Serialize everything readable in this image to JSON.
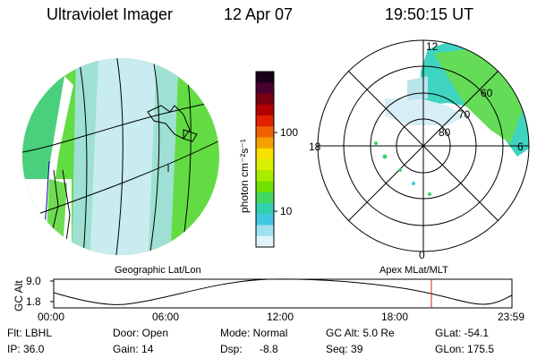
{
  "header": {
    "title": "Ultraviolet Imager",
    "date": "12 Apr 07",
    "time": "19:50:15 UT"
  },
  "colorbar": {
    "unit_label": "photon cm⁻²s⁻¹",
    "ticks": [
      "100",
      "10"
    ],
    "colors": [
      "#1a001a",
      "#4a0030",
      "#7a0010",
      "#b00000",
      "#e02000",
      "#f06000",
      "#f5a000",
      "#f8e000",
      "#d8f000",
      "#a8ec00",
      "#70e000",
      "#40d860",
      "#30d0b0",
      "#40c8e0",
      "#a0e0f0",
      "#e0f4fa"
    ]
  },
  "polar": {
    "mlt_labels": [
      "12",
      "18",
      "6",
      "0"
    ],
    "lat_labels": [
      "60",
      "70",
      "80"
    ]
  },
  "panel_labels": {
    "left": "Geographic Lat/Lon",
    "right": "Apex  MLat/MLT"
  },
  "timeline": {
    "axis_title": "GC Alt",
    "y_ticks": [
      "9.0",
      "1.8"
    ],
    "x_ticks": [
      "00:00",
      "06:00",
      "12:00",
      "18:00",
      "23:59"
    ],
    "marker_color": "#d02020"
  },
  "info": {
    "filter": "Flt: LBHL",
    "ip": "IP: 36.0",
    "door": "Door: Open",
    "gain": "Gain: 14",
    "mode": "Mode: Normal",
    "dsp_label": "Dsp:",
    "dsp_value": "-8.8",
    "gc_alt": "GC Alt: 5.0 Re",
    "seq": "Seq: 39",
    "glat": "GLat: -54.1",
    "glon": "GLon: 175.5"
  }
}
